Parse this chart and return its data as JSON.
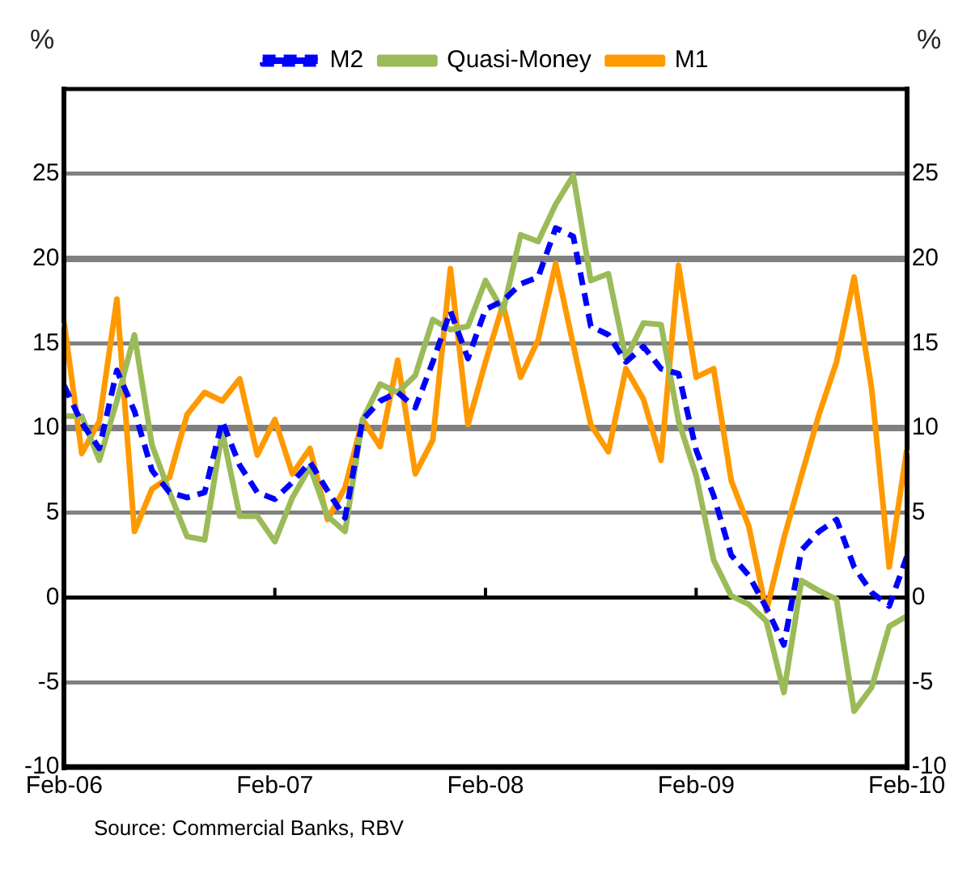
{
  "chart_data": {
    "type": "line",
    "ylabel": "%",
    "y2label": "%",
    "categories": [
      "Feb-06",
      null,
      null,
      null,
      null,
      null,
      null,
      null,
      null,
      null,
      null,
      null,
      "Feb-07",
      null,
      null,
      null,
      null,
      null,
      null,
      null,
      null,
      null,
      null,
      null,
      "Feb-08",
      null,
      null,
      null,
      null,
      null,
      null,
      null,
      null,
      null,
      null,
      null,
      "Feb-09",
      null,
      null,
      null,
      null,
      null,
      null,
      null,
      null,
      null,
      null,
      null,
      "Feb-10"
    ],
    "series": [
      {
        "name": "M2",
        "color": "#0000ff",
        "line_style": "dashed",
        "values": [
          12.5,
          10.3,
          8.8,
          13.4,
          11.0,
          7.5,
          6.2,
          5.9,
          6.2,
          10.4,
          7.8,
          6.2,
          5.8,
          6.8,
          8.0,
          6.3,
          4.7,
          10.5,
          11.6,
          12.1,
          11.2,
          13.9,
          16.9,
          14.1,
          17.0,
          17.5,
          18.5,
          18.9,
          21.8,
          21.3,
          16.0,
          15.5,
          13.9,
          14.8,
          13.5,
          13.2,
          8.7,
          6.0,
          2.5,
          1.3,
          -0.6,
          -2.8,
          2.8,
          3.9,
          4.6,
          1.8,
          0.3,
          -0.5,
          2.4
        ]
      },
      {
        "name": "Quasi-Money",
        "color": "#9bbb59",
        "line_style": "solid",
        "values": [
          10.7,
          10.7,
          8.1,
          11.6,
          15.5,
          9.0,
          6.2,
          3.6,
          3.4,
          9.8,
          4.8,
          4.8,
          3.3,
          5.9,
          7.7,
          4.8,
          3.9,
          10.5,
          12.6,
          12.1,
          13.1,
          16.4,
          15.8,
          16.0,
          18.7,
          16.9,
          21.4,
          21.0,
          23.2,
          24.9,
          18.7,
          19.1,
          14.1,
          16.2,
          16.1,
          10.4,
          7.2,
          2.2,
          0.1,
          -0.4,
          -1.4,
          -5.6,
          1.0,
          0.4,
          -0.1,
          -6.7,
          -5.3,
          -1.7,
          -1.1
        ]
      },
      {
        "name": "M1",
        "color": "#ff9900",
        "line_style": "solid",
        "values": [
          16.2,
          8.5,
          10.4,
          17.6,
          3.9,
          6.4,
          7.1,
          10.8,
          12.1,
          11.6,
          12.9,
          8.4,
          10.5,
          7.3,
          8.8,
          4.6,
          6.5,
          10.5,
          8.9,
          14.0,
          7.3,
          9.3,
          19.4,
          10.2,
          13.9,
          17.3,
          13.0,
          15.2,
          19.7,
          14.9,
          10.2,
          8.6,
          13.5,
          11.7,
          8.1,
          19.6,
          13.0,
          13.5,
          6.9,
          4.2,
          -0.8,
          3.5,
          7.2,
          10.8,
          13.9,
          18.9,
          12.3,
          1.8,
          8.7
        ]
      }
    ],
    "ylim": [
      -10,
      30
    ],
    "yticks": [
      -10,
      -5,
      0,
      5,
      10,
      15,
      20,
      25
    ],
    "y2lim": [
      -10,
      30
    ],
    "y2ticks": [
      -10,
      -5,
      0,
      5,
      10,
      15,
      20,
      25
    ],
    "grid": "y",
    "legend": "top",
    "marker": "none",
    "annotations": [
      "Source: Commercial Banks, RBV"
    ]
  }
}
